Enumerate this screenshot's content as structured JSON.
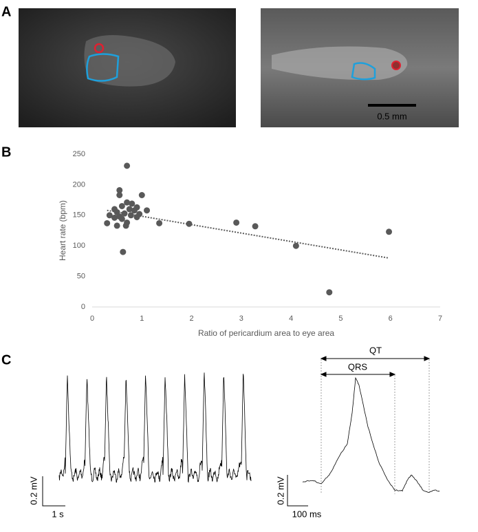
{
  "panels": {
    "a": "A",
    "b": "B",
    "c": "C"
  },
  "panel_a": {
    "scale_bar": "0.5 mm"
  },
  "chart_data": {
    "type": "scatter",
    "x_label": "Ratio of pericardium area to eye area",
    "y_label": "Heart rate (bpm)",
    "x": [
      0.7,
      0.55,
      0.55,
      1.0,
      0.7,
      0.8,
      0.6,
      0.9,
      0.75,
      0.45,
      0.85,
      1.1,
      0.5,
      0.65,
      0.95,
      0.35,
      0.55,
      0.78,
      0.9,
      0.45,
      0.6,
      0.7,
      0.3,
      0.5,
      0.68,
      1.35,
      1.95,
      2.9,
      3.28,
      0.62,
      4.1,
      4.77,
      5.97
    ],
    "values": [
      231,
      191,
      183,
      183,
      171,
      169,
      165,
      163,
      160,
      160,
      158,
      158,
      155,
      153,
      152,
      150,
      148,
      150,
      147,
      146,
      144,
      138,
      137,
      133,
      133,
      137,
      136,
      138,
      132,
      90,
      100,
      24,
      123
    ],
    "color": "#595959",
    "trendline": {
      "x": [
        0.3,
        5.97
      ],
      "y": [
        158,
        80
      ]
    },
    "xlim": [
      0,
      7
    ],
    "xticks": [
      0,
      1,
      2,
      3,
      4,
      5,
      6,
      7
    ],
    "ylim": [
      0,
      250
    ],
    "yticks": [
      0,
      50,
      100,
      150,
      200,
      250
    ]
  },
  "panel_c": {
    "left_amp": "0.2 mV",
    "left_time": "1 s",
    "right_amp": "0.2 mV",
    "right_time": "100 ms",
    "qt": "QT",
    "qrs": "QRS"
  }
}
